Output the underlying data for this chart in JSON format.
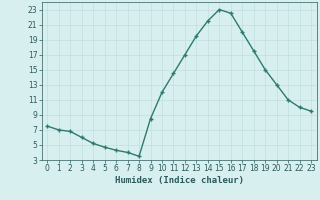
{
  "x": [
    0,
    1,
    2,
    3,
    4,
    5,
    6,
    7,
    8,
    9,
    10,
    11,
    12,
    13,
    14,
    15,
    16,
    17,
    18,
    19,
    20,
    21,
    22,
    23
  ],
  "y": [
    7.5,
    7.0,
    6.8,
    6.0,
    5.2,
    4.7,
    4.3,
    4.0,
    3.5,
    8.5,
    12.0,
    14.5,
    17.0,
    19.5,
    21.5,
    23.0,
    22.5,
    20.0,
    17.5,
    15.0,
    13.0,
    11.0,
    10.0,
    9.5
  ],
  "line_color": "#2d7a6e",
  "marker": "+",
  "bg_color": "#d8eff0",
  "grid_color": "#c0dede",
  "xlabel": "Humidex (Indice chaleur)",
  "ylim": [
    3,
    24
  ],
  "xlim": [
    -0.5,
    23.5
  ],
  "yticks": [
    3,
    5,
    7,
    9,
    11,
    13,
    15,
    17,
    19,
    21,
    23
  ],
  "xticks": [
    0,
    1,
    2,
    3,
    4,
    5,
    6,
    7,
    8,
    9,
    10,
    11,
    12,
    13,
    14,
    15,
    16,
    17,
    18,
    19,
    20,
    21,
    22,
    23
  ],
  "tick_color": "#2d5a5a",
  "label_fontsize": 6.5,
  "tick_fontsize": 5.5,
  "markersize": 3,
  "linewidth": 1.0
}
